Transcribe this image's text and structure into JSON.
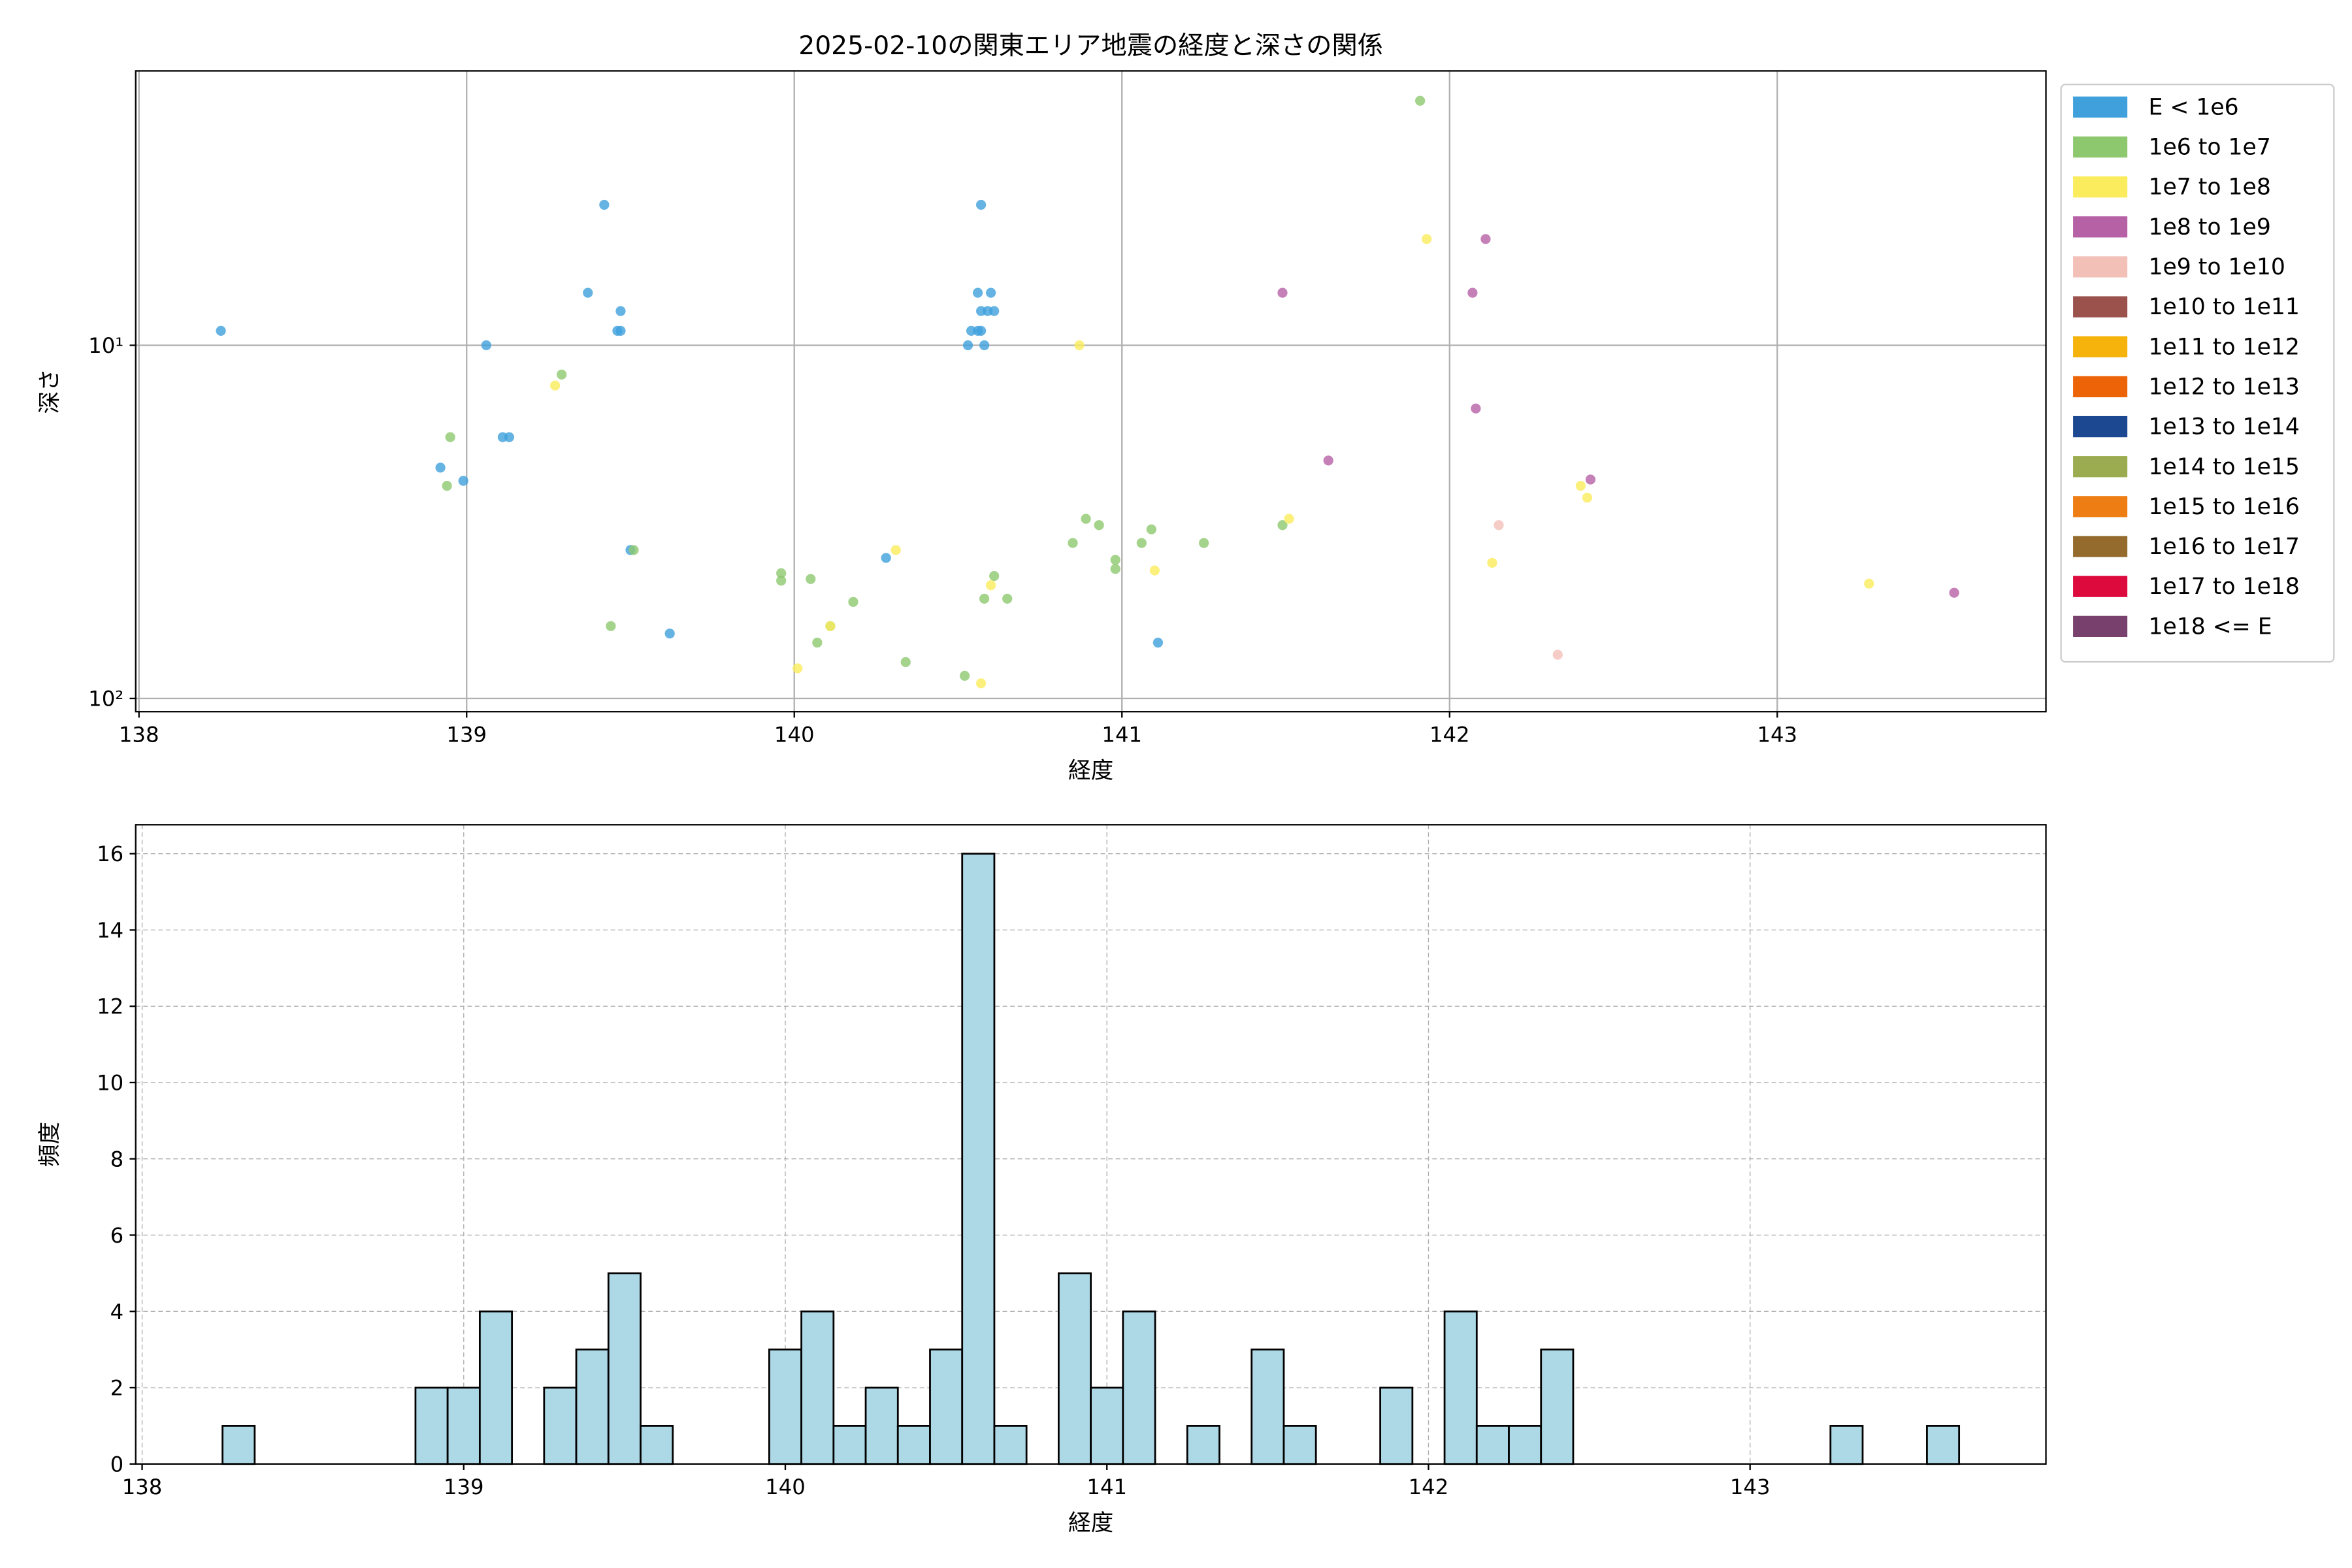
{
  "chart_data": [
    {
      "type": "scatter",
      "title": "2025-02-10の関東エリア地震の経度と深さの関係",
      "x_label": "経度",
      "y_label": "深さ",
      "xlim": [
        137.99,
        143.82
      ],
      "xticks": [
        138,
        139,
        140,
        141,
        142,
        143
      ],
      "ylim": [
        1.67,
        109
      ],
      "y_scale": "log",
      "y_inverted": true,
      "yticks": [
        {
          "value": 10,
          "label": "10¹"
        },
        {
          "value": 100,
          "label": "10²"
        }
      ],
      "grid": true,
      "legend": "outside right",
      "series": [
        {
          "name": "E < 1e6",
          "color": "#3fa0dc",
          "x": [
            138.25,
            138.92,
            138.99,
            139.06,
            139.11,
            139.13,
            139.37,
            139.42,
            139.46,
            139.47,
            139.47,
            139.5,
            139.62,
            140.28,
            140.53,
            140.54,
            140.56,
            140.56,
            140.57,
            140.57,
            140.57,
            140.58,
            140.59,
            140.6,
            140.61,
            141.11
          ],
          "values": [
            9.1,
            22.2,
            24.2,
            10,
            18.2,
            18.2,
            7.1,
            4.0,
            9.1,
            8,
            9.1,
            38,
            65.5,
            40,
            10,
            9.1,
            7.1,
            9.1,
            4.0,
            9.1,
            8,
            10,
            8,
            7.1,
            8,
            69.5
          ]
        },
        {
          "name": "1e6 to 1e7",
          "color": "#8dc86f",
          "x": [
            141.91,
            138.95,
            138.94,
            139.29,
            139.44,
            139.51,
            139.96,
            139.96,
            140.05,
            140.18,
            140.11,
            140.07,
            140.34,
            140.52,
            140.58,
            140.61,
            140.65,
            140.85,
            140.89,
            140.93,
            140.98,
            140.98,
            141.06,
            141.09,
            141.25,
            141.49
          ],
          "values": [
            2.03,
            18.2,
            25,
            12.1,
            62.4,
            38,
            44.2,
            46.4,
            45.9,
            53.3,
            62.4,
            69.5,
            78.9,
            86.3,
            52.2,
            45,
            52.2,
            36.3,
            31,
            32.3,
            40.5,
            43,
            36.3,
            33.2,
            36.3,
            32.3
          ]
        },
        {
          "name": "1e7 to 1e8",
          "color": "#fbec5d",
          "x": [
            139.27,
            140.01,
            140.11,
            140.31,
            140.57,
            140.6,
            140.87,
            141.1,
            141.51,
            141.93,
            142.13,
            142.4,
            142.42,
            143.28
          ],
          "values": [
            13.0,
            82.2,
            62.4,
            38,
            90.6,
            47.8,
            10,
            43.4,
            31,
            5.0,
            41.3,
            25,
            27,
            47.3
          ]
        },
        {
          "name": "1e8 to 1e9",
          "color": "#b660a6",
          "x": [
            141.49,
            141.63,
            142.11,
            142.07,
            142.08,
            142.43,
            143.54
          ],
          "values": [
            7.1,
            21.2,
            5.0,
            7.1,
            15.1,
            24,
            50.2
          ]
        },
        {
          "name": "1e9 to 1e10",
          "color": "#f3c0b8",
          "x": [
            142.15,
            142.33
          ],
          "values": [
            32.3,
            75.2
          ]
        },
        {
          "name": "1e10 to 1e11",
          "color": "#9b524c",
          "x": [],
          "values": []
        },
        {
          "name": "1e11 to 1e12",
          "color": "#f5b30b",
          "x": [],
          "values": []
        },
        {
          "name": "1e12 to 1e13",
          "color": "#ed6408",
          "x": [],
          "values": []
        },
        {
          "name": "1e13 to 1e14",
          "color": "#1c4891",
          "x": [],
          "values": []
        },
        {
          "name": "1e14 to 1e15",
          "color": "#9aac4f",
          "x": [],
          "values": []
        },
        {
          "name": "1e15 to 1e16",
          "color": "#ee7d13",
          "x": [],
          "values": []
        },
        {
          "name": "1e16 to 1e17",
          "color": "#956b2d",
          "x": [],
          "values": []
        },
        {
          "name": "1e17 to 1e18",
          "color": "#dd0a3e",
          "x": [],
          "values": []
        },
        {
          "name": "1e18 <= E",
          "color": "#78406d",
          "x": [],
          "values": []
        }
      ]
    },
    {
      "type": "histogram",
      "x_label": "経度",
      "y_label": "頻度",
      "xlim": [
        137.98,
        143.92
      ],
      "xticks": [
        138,
        139,
        140,
        141,
        142,
        143
      ],
      "ylim": [
        0,
        16.76
      ],
      "yticks": [
        0,
        2,
        4,
        6,
        8,
        10,
        12,
        14,
        16
      ],
      "grid": true,
      "grid_style": "dashed",
      "color": "#add8e6",
      "edge_color": "#000000",
      "bins": [
        138.25,
        138.35,
        138.45,
        138.55,
        138.65,
        138.75,
        138.85,
        138.95,
        139.05,
        139.15,
        139.25,
        139.35,
        139.45,
        139.55,
        139.65,
        139.75,
        139.85,
        139.95,
        140.05,
        140.15,
        140.25,
        140.35,
        140.45,
        140.55,
        140.65,
        140.75,
        140.85,
        140.95,
        141.05,
        141.15,
        141.25,
        141.35,
        141.45,
        141.55,
        141.65,
        141.75,
        141.85,
        141.95,
        142.05,
        142.15,
        142.25,
        142.35,
        142.45,
        142.55,
        142.65,
        142.75,
        142.85,
        142.95,
        143.05,
        143.15,
        143.25,
        143.35,
        143.45,
        143.55,
        143.65
      ],
      "values": [
        1,
        0,
        0,
        0,
        0,
        0,
        2,
        2,
        4,
        0,
        2,
        3,
        5,
        1,
        0,
        0,
        0,
        3,
        4,
        1,
        2,
        1,
        3,
        16,
        1,
        0,
        5,
        2,
        4,
        0,
        1,
        0,
        3,
        1,
        0,
        0,
        2,
        0,
        4,
        1,
        1,
        3,
        0,
        0,
        0,
        0,
        0,
        0,
        0,
        0,
        1,
        0,
        0,
        1
      ]
    }
  ]
}
